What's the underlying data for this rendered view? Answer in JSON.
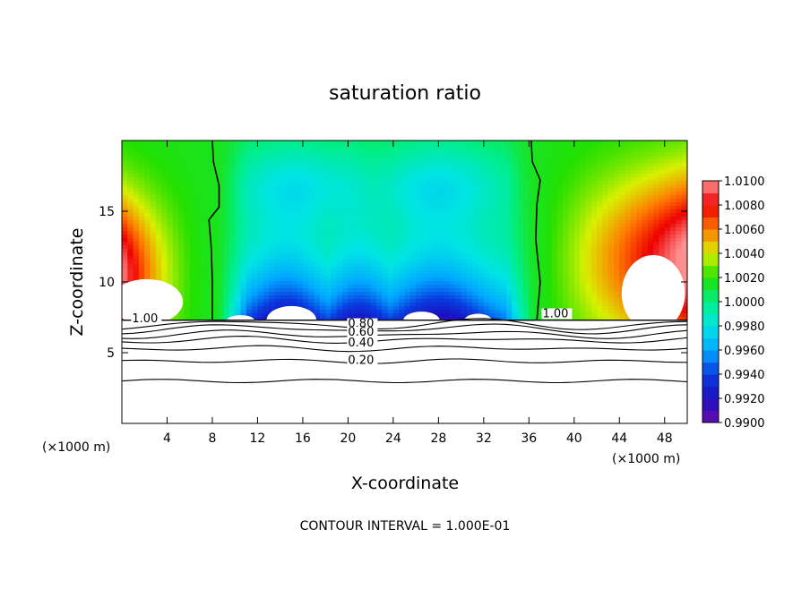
{
  "chart_data": {
    "type": "heatmap",
    "title": "saturation ratio",
    "xlabel": "X-coordinate",
    "ylabel": "Z-coordinate",
    "x_unit": "(×1000 m)",
    "footer": "CONTOUR INTERVAL = 1.000E-01",
    "xlim": [
      0,
      50
    ],
    "ylim": [
      0,
      20
    ],
    "x_ticks": [
      4,
      8,
      12,
      16,
      20,
      24,
      28,
      32,
      36,
      40,
      44,
      48
    ],
    "y_ticks": [
      5,
      10,
      15
    ],
    "colorbar": {
      "min": 0.99,
      "max": 1.01,
      "tick_labels": [
        "1.0100",
        "1.0080",
        "1.0060",
        "1.0040",
        "1.0020",
        "1.0000",
        "0.9980",
        "0.9960",
        "0.9940",
        "0.9920",
        "0.9900"
      ]
    },
    "contour_labels": [
      "1.00",
      "1.00",
      "0.80",
      "0.60",
      "0.40",
      "0.20"
    ],
    "description_fields": {
      "cloud_base_km": 7.3,
      "line_contour_heights_km": [
        3.0,
        4.4,
        5.3,
        5.9,
        6.3,
        6.7,
        7.0
      ],
      "line_contour_values": [
        0.1,
        0.2,
        0.3,
        0.4,
        0.5,
        0.6,
        0.7
      ]
    }
  }
}
